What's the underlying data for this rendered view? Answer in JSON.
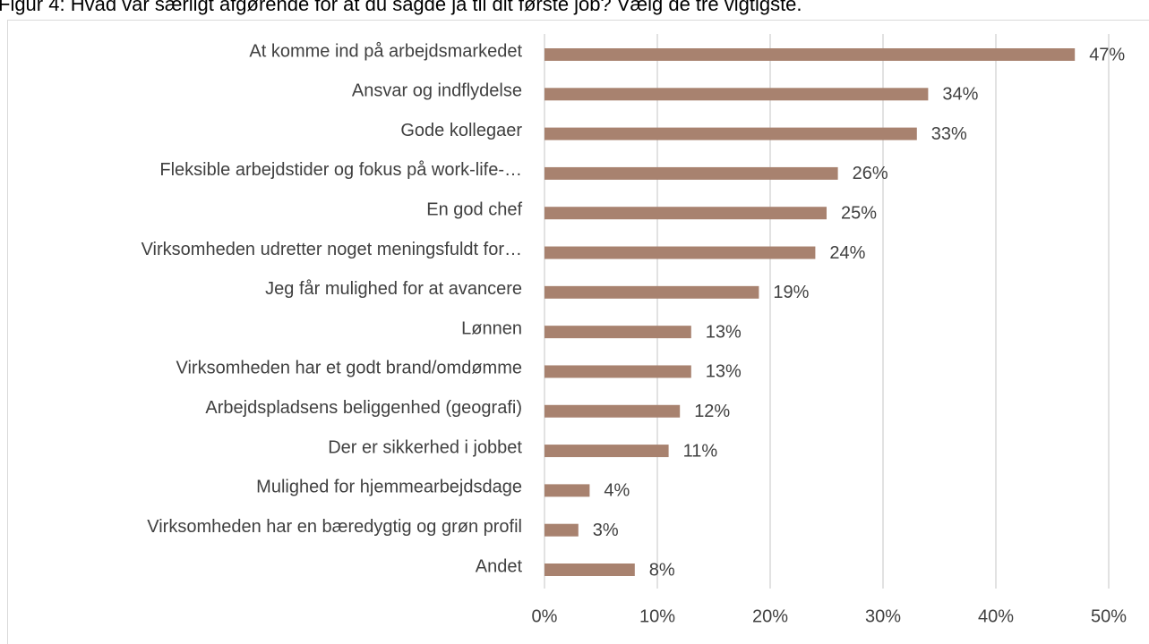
{
  "chart_data": {
    "type": "barh",
    "title": "Figur 4: Hvad var særligt afgørende for at du sagde ja til dit første job? Vælg de tre vigtigste.",
    "categories": [
      "At komme ind på arbejdsmarkedet",
      "Ansvar og indflydelse",
      "Gode kollegaer",
      "Fleksible arbejdstider og fokus på work-life-…",
      "En god chef",
      "Virksomheden udretter noget meningsfuldt for…",
      "Jeg får mulighed for at avancere",
      "Lønnen",
      "Virksomheden har et godt brand/omdømme",
      "Arbejdspladsens beliggenhed (geografi)",
      "Der er sikkerhed i jobbet",
      "Mulighed for hjemmearbejdsdage",
      "Virksomheden har en bæredygtig og grøn profil",
      "Andet"
    ],
    "values": [
      47,
      34,
      33,
      26,
      25,
      24,
      19,
      13,
      13,
      12,
      11,
      4,
      3,
      8
    ],
    "value_labels": [
      "47%",
      "34%",
      "33%",
      "26%",
      "25%",
      "24%",
      "19%",
      "13%",
      "13%",
      "12%",
      "11%",
      "4%",
      "3%",
      "8%"
    ],
    "color": "#a8826f",
    "xlim": [
      0,
      50
    ],
    "xticks": [
      {
        "value": 0,
        "label": "0%"
      },
      {
        "value": 10,
        "label": "10%"
      },
      {
        "value": 20,
        "label": "20%"
      },
      {
        "value": 30,
        "label": "30%"
      },
      {
        "value": 40,
        "label": "40%"
      },
      {
        "value": 50,
        "label": "50%"
      }
    ],
    "grid": true
  }
}
